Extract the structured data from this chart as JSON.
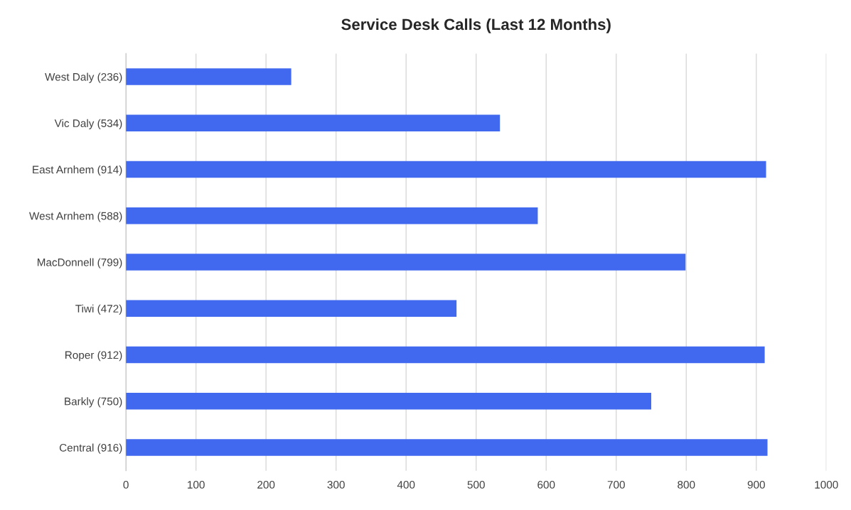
{
  "chart_data": {
    "type": "bar",
    "orientation": "horizontal",
    "title": "Service Desk Calls (Last 12 Months)",
    "categories": [
      "West Daly (236)",
      "Vic Daly (534)",
      "East Arnhem (914)",
      "West Arnhem (588)",
      "MacDonnell (799)",
      "Tiwi (472)",
      "Roper (912)",
      "Barkly (750)",
      "Central (916)"
    ],
    "values": [
      236,
      534,
      914,
      588,
      799,
      472,
      912,
      750,
      916
    ],
    "color": "#4169f0",
    "xlim": [
      0,
      1000
    ],
    "xticks": [
      0,
      100,
      200,
      300,
      400,
      500,
      600,
      700,
      800,
      900,
      1000
    ],
    "grid": "x",
    "legend": false
  }
}
